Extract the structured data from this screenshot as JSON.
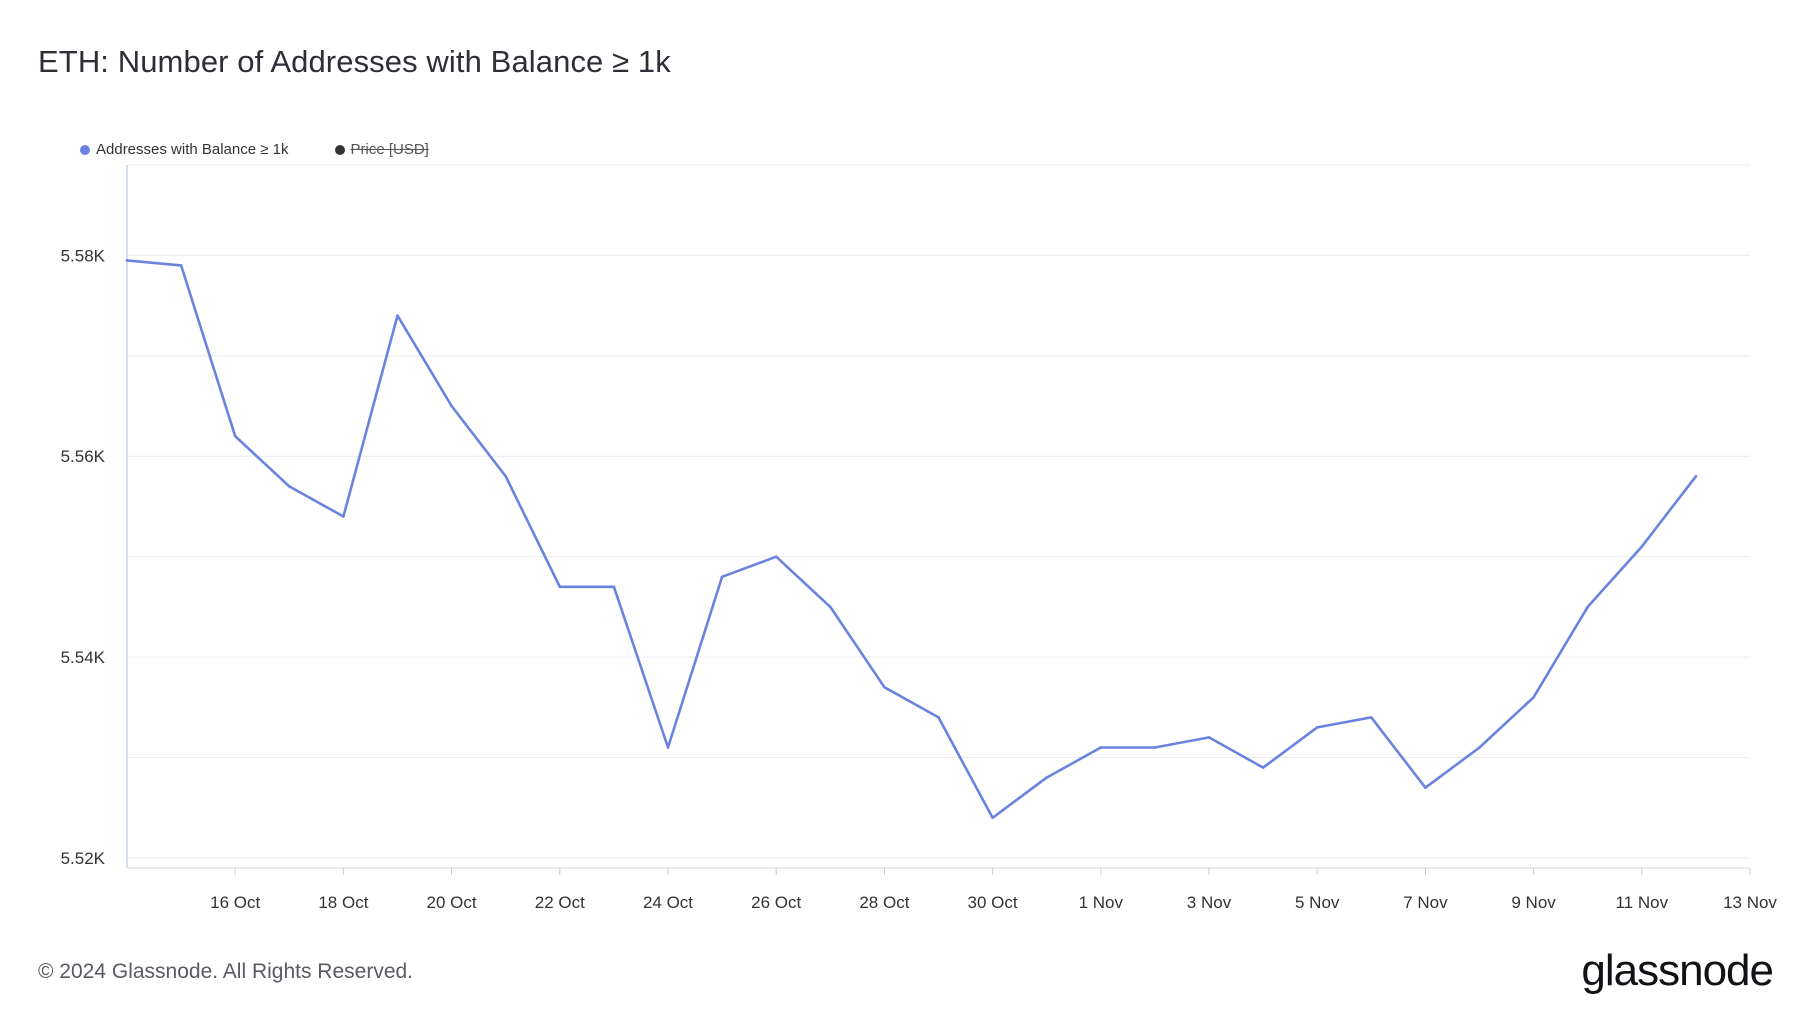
{
  "title": "ETH: Number of Addresses with Balance ≥ 1k",
  "legend": [
    {
      "label": "Addresses with Balance ≥ 1k",
      "color": "#6b83e0",
      "enabled": true
    },
    {
      "label": "Price [USD]",
      "color": "#333333",
      "enabled": false
    }
  ],
  "footer": {
    "copyright": "© 2024 Glassnode. All Rights Reserved.",
    "brand": "glassnode"
  },
  "chart_data": {
    "type": "line",
    "title": "ETH: Number of Addresses with Balance ≥ 1k",
    "xlabel": "",
    "ylabel": "",
    "x": [
      "2024-10-14",
      "2024-10-15",
      "2024-10-16",
      "2024-10-17",
      "2024-10-18",
      "2024-10-19",
      "2024-10-20",
      "2024-10-21",
      "2024-10-22",
      "2024-10-23",
      "2024-10-24",
      "2024-10-25",
      "2024-10-26",
      "2024-10-27",
      "2024-10-28",
      "2024-10-29",
      "2024-10-30",
      "2024-10-31",
      "2024-11-01",
      "2024-11-02",
      "2024-11-03",
      "2024-11-04",
      "2024-11-05",
      "2024-11-06",
      "2024-11-07",
      "2024-11-08",
      "2024-11-09",
      "2024-11-10",
      "2024-11-11",
      "2024-11-12"
    ],
    "series": [
      {
        "name": "Addresses with Balance ≥ 1k",
        "color": "#6b83e0",
        "values": [
          5579.5,
          5579,
          5562,
          5557,
          5554,
          5574,
          5565,
          5558,
          5547,
          5547,
          5531,
          5548,
          5550,
          5545,
          5537,
          5534,
          5524,
          5528,
          5531,
          5531,
          5532,
          5529,
          5533,
          5534,
          5527,
          5531,
          5536,
          5545,
          5551,
          5558
        ]
      }
    ],
    "x_range": [
      "2024-10-14",
      "2024-11-13"
    ],
    "x_ticks": [
      {
        "date": "2024-10-16",
        "label": "16 Oct"
      },
      {
        "date": "2024-10-18",
        "label": "18 Oct"
      },
      {
        "date": "2024-10-20",
        "label": "20 Oct"
      },
      {
        "date": "2024-10-22",
        "label": "22 Oct"
      },
      {
        "date": "2024-10-24",
        "label": "24 Oct"
      },
      {
        "date": "2024-10-26",
        "label": "26 Oct"
      },
      {
        "date": "2024-10-28",
        "label": "28 Oct"
      },
      {
        "date": "2024-10-30",
        "label": "30 Oct"
      },
      {
        "date": "2024-11-01",
        "label": "1 Nov"
      },
      {
        "date": "2024-11-03",
        "label": "3 Nov"
      },
      {
        "date": "2024-11-05",
        "label": "5 Nov"
      },
      {
        "date": "2024-11-07",
        "label": "7 Nov"
      },
      {
        "date": "2024-11-09",
        "label": "9 Nov"
      },
      {
        "date": "2024-11-11",
        "label": "11 Nov"
      },
      {
        "date": "2024-11-13",
        "label": "13 Nov"
      }
    ],
    "ylim": [
      5519,
      5589
    ],
    "y_ticks": [
      {
        "value": 5520,
        "label": "5.52K"
      },
      {
        "value": 5540,
        "label": "5.54K"
      },
      {
        "value": 5560,
        "label": "5.56K"
      },
      {
        "value": 5580,
        "label": "5.58K"
      }
    ],
    "y_gridlines": [
      5520,
      5530,
      5540,
      5550,
      5560,
      5570,
      5580,
      5589
    ],
    "grid": true,
    "legend_position": "top-left"
  }
}
